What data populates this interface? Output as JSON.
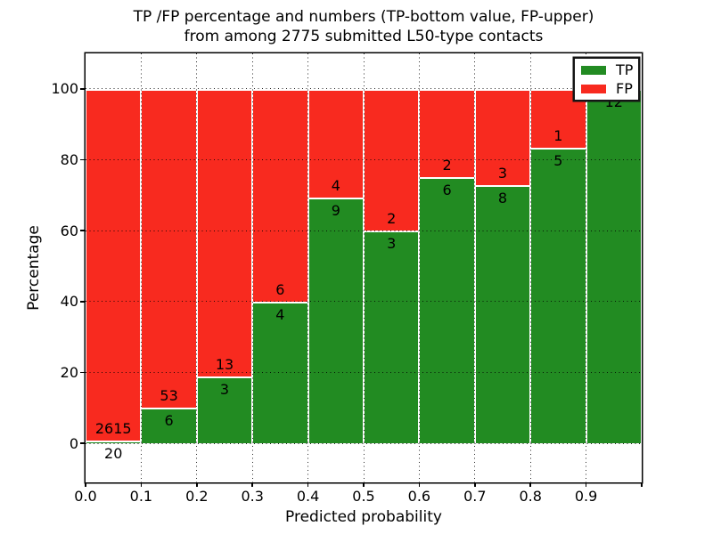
{
  "title": {
    "line1": "TP /FP percentage and numbers (TP-bottom value, FP-upper)",
    "line2": "from among 2775 submitted L50-type contacts"
  },
  "colors": {
    "tp_green": "#228B22",
    "fp_red": "#f82a1f",
    "axis": "#000000",
    "background": "#ffffff"
  },
  "legend": {
    "position": "upper right"
  },
  "chart_data": {
    "type": "bar",
    "stacked": true,
    "title": "TP /FP percentage and numbers (TP-bottom value, FP-upper) from among 2775 submitted L50-type contacts",
    "title_lines": [
      "TP /FP percentage and numbers (TP-bottom value, FP-upper)",
      "from among 2775 submitted L50-type contacts"
    ],
    "xlabel": "Predicted probability",
    "ylabel": "Percentage",
    "total_contacts": 2775,
    "bin_width": 0.1,
    "categories": [
      "0.0-0.1",
      "0.1-0.2",
      "0.2-0.3",
      "0.3-0.4",
      "0.4-0.5",
      "0.5-0.6",
      "0.6-0.7",
      "0.7-0.8",
      "0.8-0.9",
      "0.9-1.0"
    ],
    "series": [
      {
        "name": "TP",
        "color": "#228B22",
        "counts": [
          20,
          6,
          3,
          4,
          9,
          3,
          6,
          8,
          5,
          12
        ],
        "percent": [
          0.76,
          10.17,
          18.75,
          40.0,
          69.23,
          60.0,
          75.0,
          72.73,
          83.33,
          100.0
        ]
      },
      {
        "name": "FP",
        "color": "#f82a1f",
        "counts": [
          2615,
          53,
          13,
          6,
          4,
          2,
          2,
          3,
          1,
          0
        ],
        "percent": [
          99.24,
          89.83,
          81.25,
          60.0,
          30.77,
          40.0,
          25.0,
          27.27,
          16.67,
          0.0
        ]
      }
    ],
    "yticks": [
      0,
      20,
      40,
      60,
      80,
      100
    ],
    "xticks": [
      "0.0",
      "0.1",
      "0.2",
      "0.3",
      "0.4",
      "0.5",
      "0.6",
      "0.7",
      "0.8",
      "0.9"
    ],
    "ylim": [
      -11,
      110
    ],
    "xlim": [
      0.0,
      1.0
    ],
    "grid": "dotted",
    "legend_position": "upper right",
    "note": "Count labels drawn at TP/FP boundary: FP count above, TP count below; FP count 0 of last bin hidden behind legend"
  }
}
